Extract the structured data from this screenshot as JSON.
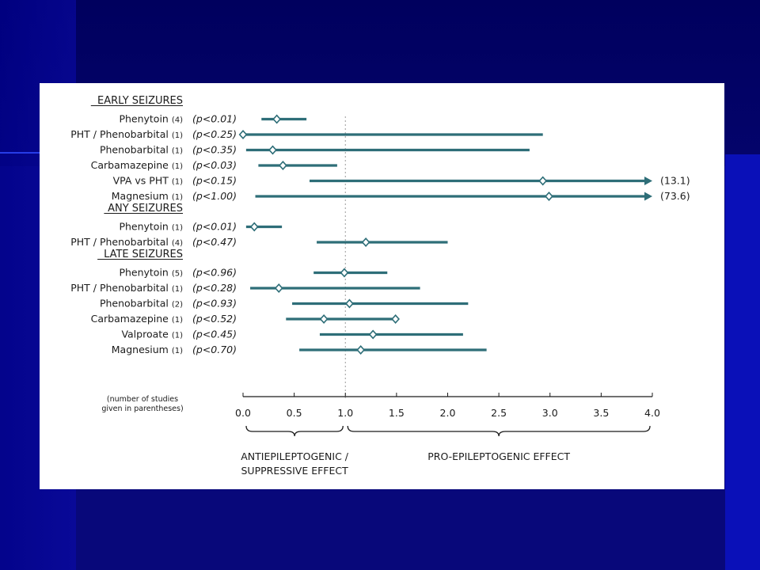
{
  "colors": {
    "slide_bg": "#08087a",
    "panel_bg": "#ffffff",
    "bar": "#2e6e78",
    "marker_fill": "#ffffff",
    "text": "#1b1b1b"
  },
  "chart_data": {
    "type": "forest",
    "xlim": [
      0,
      4
    ],
    "xticks": [
      "0.0",
      "0.5",
      "1.0",
      "1.5",
      "2.0",
      "2.5",
      "3.0",
      "3.5",
      "4.0"
    ],
    "reference_line": 1.0,
    "groups": [
      {
        "title": "EARLY SEIZURES",
        "rows": [
          {
            "label": "Phenytoin",
            "n": "(4)",
            "p": "(p<0.01)",
            "estimates": [
              0.33
            ],
            "lo": 0.18,
            "hi": 0.62
          },
          {
            "label": "PHT / Phenobarbital",
            "n": "(1)",
            "p": "(p<0.25)",
            "estimates": [
              0.0
            ],
            "lo": 0.0,
            "hi": 2.93
          },
          {
            "label": "Phenobarbital",
            "n": "(1)",
            "p": "(p<0.35)",
            "estimates": [
              0.29
            ],
            "lo": 0.03,
            "hi": 2.8
          },
          {
            "label": "Carbamazepine",
            "n": "(1)",
            "p": "(p<0.03)",
            "estimates": [
              0.39
            ],
            "lo": 0.15,
            "hi": 0.92
          },
          {
            "label": "VPA vs PHT",
            "n": "(1)",
            "p": "(p<0.15)",
            "estimates": [
              2.93
            ],
            "lo": 0.65,
            "hi": 4.0,
            "arrow": true,
            "hi_text": "(13.1)"
          },
          {
            "label": "Magnesium",
            "n": "(1)",
            "p": "(p<1.00)",
            "estimates": [
              2.99
            ],
            "lo": 0.12,
            "hi": 4.0,
            "arrow": true,
            "hi_text": "(73.6)"
          }
        ]
      },
      {
        "title": "ANY SEIZURES",
        "rows": [
          {
            "label": "Phenytoin",
            "n": "(1)",
            "p": "(p<0.01)",
            "estimates": [
              0.11
            ],
            "lo": 0.03,
            "hi": 0.38
          },
          {
            "label": "PHT / Phenobarbital",
            "n": "(4)",
            "p": "(p<0.47)",
            "estimates": [
              1.2
            ],
            "lo": 0.72,
            "hi": 2.0
          }
        ]
      },
      {
        "title": "LATE SEIZURES",
        "rows": [
          {
            "label": "Phenytoin",
            "n": "(5)",
            "p": "(p<0.96)",
            "estimates": [
              0.99
            ],
            "lo": 0.69,
            "hi": 1.41
          },
          {
            "label": "PHT / Phenobarbital",
            "n": "(1)",
            "p": "(p<0.28)",
            "estimates": [
              0.35
            ],
            "lo": 0.07,
            "hi": 1.73
          },
          {
            "label": "Phenobarbital",
            "n": "(2)",
            "p": "(p<0.93)",
            "estimates": [
              1.04
            ],
            "lo": 0.48,
            "hi": 2.2
          },
          {
            "label": "Carbamazepine",
            "n": "(1)",
            "p": "(p<0.52)",
            "estimates": [
              0.79,
              1.49
            ],
            "lo": 0.42,
            "hi": 1.49
          },
          {
            "label": "Valproate",
            "n": "(1)",
            "p": "(p<0.45)",
            "estimates": [
              1.27
            ],
            "lo": 0.75,
            "hi": 2.15
          },
          {
            "label": "Magnesium",
            "n": "(1)",
            "p": "(p<0.70)",
            "estimates": [
              1.15
            ],
            "lo": 0.55,
            "hi": 2.38
          }
        ]
      }
    ],
    "footnote": [
      "(number of studies",
      "given in parentheses)"
    ],
    "regions": [
      {
        "from": 0.0,
        "to": 1.0,
        "lines": [
          "ANTIEPILEPTOGENIC /",
          "SUPPRESSIVE EFFECT"
        ]
      },
      {
        "from": 1.0,
        "to": 4.0,
        "lines": [
          "PRO-EPILEPTOGENIC EFFECT"
        ]
      }
    ]
  }
}
